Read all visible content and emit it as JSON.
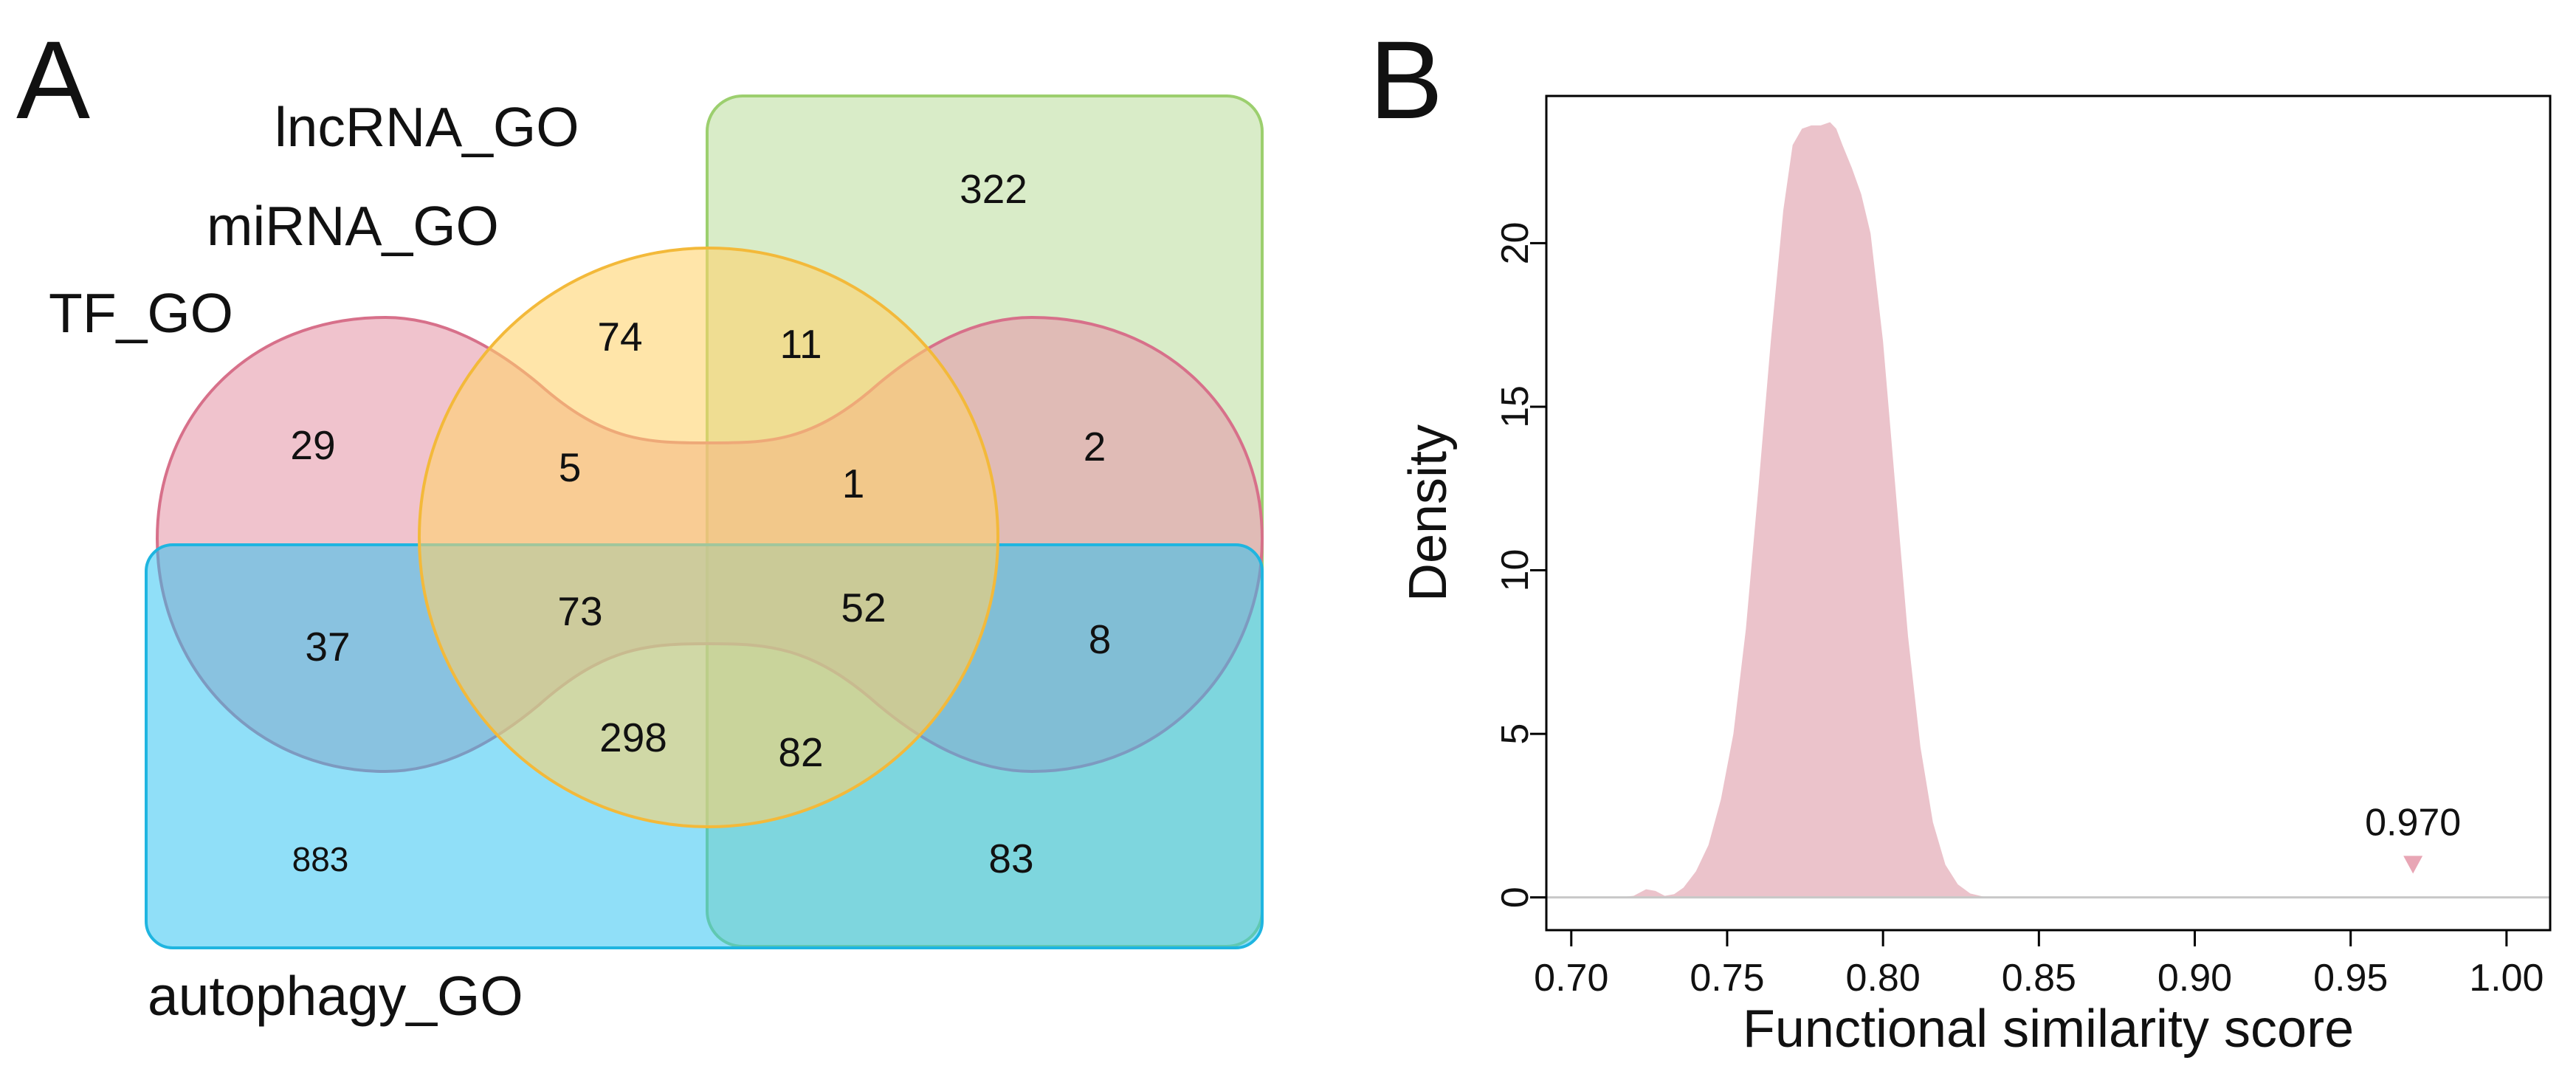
{
  "panel_a": {
    "letter": "A",
    "set_labels": {
      "lncrna": "lncRNA_GO",
      "mirna": "miRNA_GO",
      "tf": "TF_GO",
      "autophagy": "autophagy_GO"
    },
    "counts": {
      "lnc_only": "322",
      "mi_only": "74",
      "mi_lnc": "11",
      "tf_only": "29",
      "tf_mi": "5",
      "tf_mi_lnc": "1",
      "tf_lnc": "2",
      "tf_auto": "37",
      "tf_mi_auto": "73",
      "tf_mi_lnc_auto": "52",
      "tf_lnc_auto": "8",
      "mi_auto": "298",
      "mi_lnc_auto": "82",
      "auto_only": "883",
      "lnc_auto": "83"
    },
    "colors": {
      "lncrna": "#b9dd9a",
      "mirna": "#ffd36a",
      "tf": "#e598a8",
      "autophagy": "#2bc2f2"
    }
  },
  "panel_b": {
    "letter": "B",
    "annotation": {
      "label": "0.970",
      "value": 0.97,
      "color": "#e8a6b5"
    }
  },
  "chart_data": {
    "type": "area",
    "title": "",
    "xlabel": "Functional similarity score",
    "ylabel": "Density",
    "xlim": [
      0.692,
      1.014
    ],
    "ylim": [
      -1.0,
      24.5
    ],
    "xticks": [
      0.7,
      0.75,
      0.8,
      0.85,
      0.9,
      0.95,
      1.0
    ],
    "xtick_labels": [
      "0.70",
      "0.75",
      "0.80",
      "0.85",
      "0.90",
      "0.95",
      "1.00"
    ],
    "yticks": [
      0,
      5,
      10,
      15,
      20
    ],
    "ytick_labels": [
      "0",
      "5",
      "10",
      "15",
      "20"
    ],
    "fill_color": "#ebc3cb",
    "baseline_color": "#c8c8c8",
    "series": [
      {
        "name": "density",
        "x": [
          0.715,
          0.72,
          0.724,
          0.727,
          0.73,
          0.733,
          0.736,
          0.74,
          0.744,
          0.748,
          0.752,
          0.756,
          0.76,
          0.764,
          0.768,
          0.771,
          0.774,
          0.777,
          0.78,
          0.783,
          0.785,
          0.787,
          0.79,
          0.793,
          0.796,
          0.8,
          0.804,
          0.808,
          0.812,
          0.816,
          0.82,
          0.824,
          0.828,
          0.832,
          0.836
        ],
        "y": [
          0.0,
          0.05,
          0.25,
          0.2,
          0.05,
          0.1,
          0.3,
          0.8,
          1.6,
          3.0,
          5.0,
          8.2,
          12.5,
          17.0,
          21.0,
          23.0,
          23.5,
          23.6,
          23.6,
          23.7,
          23.5,
          23.0,
          22.3,
          21.5,
          20.3,
          17.0,
          12.5,
          8.0,
          4.6,
          2.3,
          1.0,
          0.4,
          0.12,
          0.03,
          0.0
        ]
      }
    ],
    "marker": {
      "x": 0.97,
      "y": 1.0,
      "label": "0.970"
    }
  }
}
